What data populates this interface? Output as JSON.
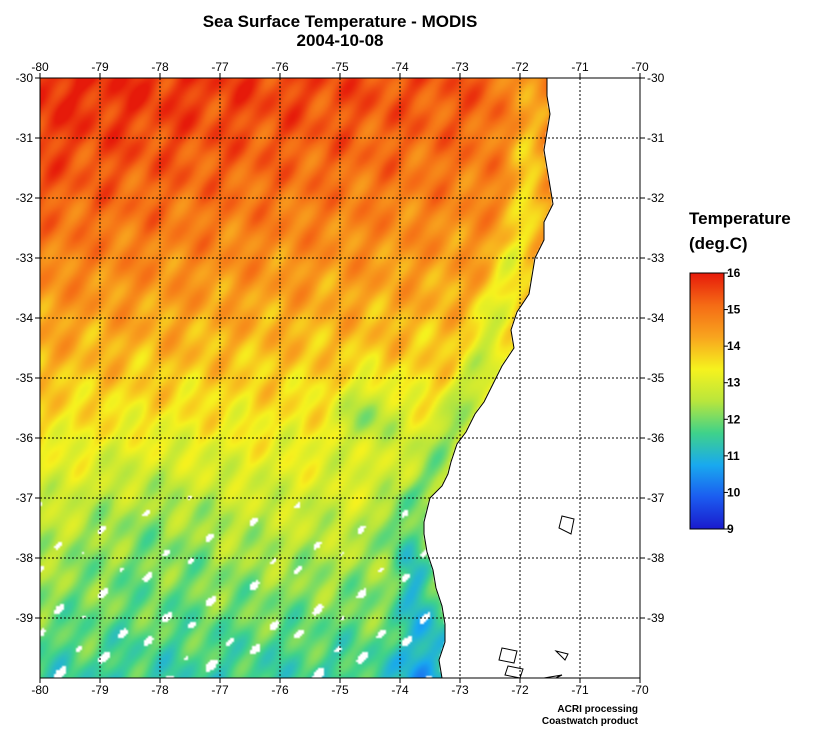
{
  "title": {
    "line1": "Sea Surface Temperature - MODIS",
    "line2": "2004-10-08"
  },
  "map": {
    "lon_min": -80,
    "lon_max": -70,
    "lat_min": -40,
    "lat_max": -30,
    "lon_ticks": [
      -80,
      -79,
      -78,
      -77,
      -76,
      -75,
      -74,
      -73,
      -72,
      -71,
      -70
    ],
    "lon_tick_labels": [
      "-80",
      "-79",
      "-78",
      "-77",
      "-76",
      "-75",
      "-74",
      "-73",
      "-72",
      "-71",
      "-70"
    ],
    "lat_ticks": [
      -30,
      -31,
      -32,
      -33,
      -34,
      -35,
      -36,
      -37,
      -38,
      -39
    ],
    "lat_tick_labels": [
      "-30",
      "-31",
      "-32",
      "-33",
      "-34",
      "-35",
      "-36",
      "-37",
      "-38",
      "-39"
    ],
    "grid": "dotted",
    "land_color": "#ffffff",
    "coast_color": "#000000",
    "coastline": [
      [
        -71.55,
        -30.0
      ],
      [
        -71.55,
        -30.3
      ],
      [
        -71.5,
        -30.6
      ],
      [
        -71.55,
        -30.9
      ],
      [
        -71.6,
        -31.2
      ],
      [
        -71.55,
        -31.5
      ],
      [
        -71.5,
        -31.8
      ],
      [
        -71.45,
        -32.1
      ],
      [
        -71.6,
        -32.4
      ],
      [
        -71.6,
        -32.7
      ],
      [
        -71.75,
        -33.0
      ],
      [
        -71.8,
        -33.3
      ],
      [
        -71.85,
        -33.6
      ],
      [
        -72.05,
        -33.9
      ],
      [
        -72.15,
        -34.2
      ],
      [
        -72.1,
        -34.5
      ],
      [
        -72.3,
        -34.8
      ],
      [
        -72.45,
        -35.1
      ],
      [
        -72.6,
        -35.4
      ],
      [
        -72.75,
        -35.6
      ],
      [
        -72.9,
        -35.9
      ],
      [
        -73.05,
        -36.1
      ],
      [
        -73.15,
        -36.4
      ],
      [
        -73.2,
        -36.6
      ],
      [
        -73.3,
        -36.8
      ],
      [
        -73.5,
        -37.0
      ],
      [
        -73.55,
        -37.2
      ],
      [
        -73.6,
        -37.4
      ],
      [
        -73.6,
        -37.6
      ],
      [
        -73.55,
        -37.9
      ],
      [
        -73.45,
        -38.2
      ],
      [
        -73.4,
        -38.5
      ],
      [
        -73.3,
        -38.8
      ],
      [
        -73.25,
        -39.1
      ],
      [
        -73.25,
        -39.4
      ],
      [
        -73.35,
        -39.7
      ],
      [
        -73.3,
        -40.0
      ]
    ],
    "islands": [
      [
        [
          -71.3,
          -37.3
        ],
        [
          -71.1,
          -37.35
        ],
        [
          -71.15,
          -37.6
        ],
        [
          -71.35,
          -37.5
        ]
      ],
      [
        [
          -72.3,
          -39.5
        ],
        [
          -72.05,
          -39.55
        ],
        [
          -72.1,
          -39.75
        ],
        [
          -72.35,
          -39.7
        ]
      ],
      [
        [
          -72.2,
          -39.8
        ],
        [
          -71.95,
          -39.85
        ],
        [
          -72.0,
          -40.0
        ],
        [
          -72.25,
          -39.95
        ]
      ],
      [
        [
          -71.4,
          -39.55
        ],
        [
          -71.2,
          -39.6
        ],
        [
          -71.25,
          -39.7
        ]
      ],
      [
        [
          -71.6,
          -40.0
        ],
        [
          -71.3,
          -39.95
        ],
        [
          -71.4,
          -40.0
        ]
      ]
    ]
  },
  "sst": {
    "field": "modelled approximation of SST in deg.C over the mapped area",
    "north_west_value": 15.9,
    "south_value": 11.5,
    "south_west_cold_patch_value": 11.0,
    "cloud_masked_color": "#ffffff"
  },
  "legend": {
    "title_line1": "Temperature",
    "title_line2": "(deg.C)",
    "min": 9,
    "max": 16,
    "ticks": [
      9,
      10,
      11,
      12,
      13,
      14,
      15,
      16
    ],
    "tick_labels": [
      "9",
      "10",
      "11",
      "12",
      "13",
      "14",
      "15",
      "16"
    ],
    "colormap": [
      "#1a1acc",
      "#1b5cf0",
      "#19a9ef",
      "#3fd28a",
      "#b9e63c",
      "#f6f21e",
      "#f8a41e",
      "#f56b15",
      "#e61a0a"
    ]
  },
  "credits": {
    "line1": "ACRI processing",
    "line2": "Coastwatch product"
  }
}
